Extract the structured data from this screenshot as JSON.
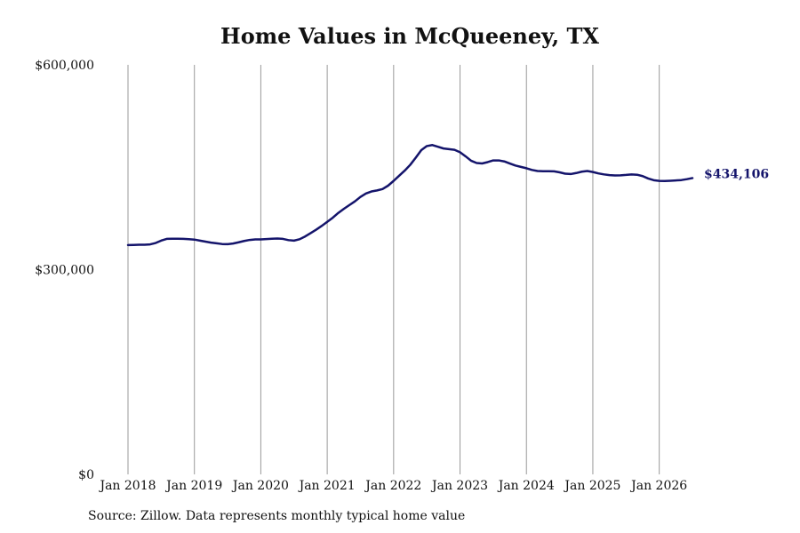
{
  "chart_data": {
    "type": "line",
    "title": "Home Values in McQueeney, TX",
    "xlabel": "",
    "ylabel": "",
    "source": "Source: Zillow. Data represents monthly typical home value",
    "x_ticks": [
      "Jan 2018",
      "Jan 2019",
      "Jan 2020",
      "Jan 2021",
      "Jan 2022",
      "Jan 2023",
      "Jan 2024",
      "Jan 2025",
      "Jan 2026"
    ],
    "y_ticks": [
      "$0",
      "$300,000",
      "$600,000"
    ],
    "ylim": [
      0,
      600000
    ],
    "xlim": [
      "2018-01",
      "2026-07"
    ],
    "grid": "vertical",
    "line_color": "#14146b",
    "end_label": "$434,106",
    "series": [
      {
        "x": [
          "2018-01",
          "2018-02",
          "2018-03",
          "2018-04",
          "2018-05",
          "2018-06",
          "2018-07",
          "2018-08",
          "2018-09",
          "2018-10",
          "2018-11",
          "2018-12",
          "2019-01",
          "2019-02",
          "2019-03",
          "2019-04",
          "2019-05",
          "2019-06",
          "2019-07",
          "2019-08",
          "2019-09",
          "2019-10",
          "2019-11",
          "2019-12",
          "2020-01",
          "2020-02",
          "2020-03",
          "2020-04",
          "2020-05",
          "2020-06",
          "2020-07",
          "2020-08",
          "2020-09",
          "2020-10",
          "2020-11",
          "2020-12",
          "2021-01",
          "2021-02",
          "2021-03",
          "2021-04",
          "2021-05",
          "2021-06",
          "2021-07",
          "2021-08",
          "2021-09",
          "2021-10",
          "2021-11",
          "2021-12",
          "2022-01",
          "2022-02",
          "2022-03",
          "2022-04",
          "2022-05",
          "2022-06",
          "2022-07",
          "2022-08",
          "2022-09",
          "2022-10",
          "2022-11",
          "2022-12",
          "2023-01",
          "2023-02",
          "2023-03",
          "2023-04",
          "2023-05",
          "2023-06",
          "2023-07",
          "2023-08",
          "2023-09",
          "2023-10",
          "2023-11",
          "2023-12",
          "2024-01",
          "2024-02",
          "2024-03",
          "2024-04",
          "2024-05",
          "2024-06",
          "2024-07",
          "2024-08",
          "2024-09",
          "2024-10",
          "2024-11",
          "2024-12",
          "2025-01",
          "2025-02",
          "2025-03",
          "2025-04",
          "2025-05",
          "2025-06",
          "2025-07",
          "2025-08",
          "2025-09",
          "2025-10",
          "2025-11",
          "2025-12",
          "2026-01",
          "2026-02",
          "2026-03",
          "2026-04",
          "2026-05",
          "2026-06",
          "2026-07"
        ],
        "values": [
          336000,
          336200,
          336500,
          336500,
          337000,
          339000,
          342500,
          345000,
          345200,
          345200,
          345000,
          344500,
          344000,
          342500,
          341000,
          339500,
          338500,
          337500,
          337300,
          338200,
          340000,
          342000,
          343500,
          344200,
          344300,
          344800,
          345300,
          345500,
          345000,
          343200,
          342500,
          344500,
          348500,
          353500,
          358500,
          364000,
          370000,
          376000,
          383000,
          389000,
          394500,
          400000,
          406500,
          411500,
          414500,
          416000,
          418000,
          423000,
          430000,
          437500,
          445000,
          453500,
          464000,
          475000,
          481000,
          482500,
          480000,
          477500,
          476500,
          475500,
          472000,
          466000,
          459500,
          456200,
          455500,
          457500,
          460000,
          460000,
          458500,
          455500,
          452500,
          450500,
          448500,
          446000,
          444500,
          444200,
          444200,
          444000,
          442500,
          440500,
          440000,
          441500,
          443500,
          444500,
          443000,
          441000,
          439500,
          438500,
          438000,
          438200,
          438700,
          439500,
          439000,
          437000,
          433500,
          431000,
          430000,
          429800,
          430200,
          430700,
          431200,
          432500,
          434106
        ]
      }
    ]
  }
}
